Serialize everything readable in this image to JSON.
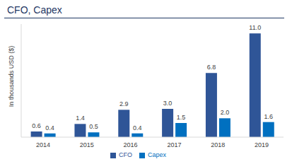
{
  "chart_data": {
    "type": "bar",
    "title": "CFO, Capex",
    "y_label": "In thousands USD ($)",
    "categories": [
      "2014",
      "2015",
      "2016",
      "2017",
      "2018",
      "2019"
    ],
    "series": [
      {
        "name": "CFO",
        "color": "#2f5597",
        "values": [
          0.6,
          1.4,
          2.9,
          3.0,
          6.8,
          11.0
        ],
        "value_labels": [
          "0.6",
          "1.4",
          "2.9",
          "3.0",
          "6.8",
          "11.0"
        ]
      },
      {
        "name": "Capex",
        "color": "#0070c0",
        "values": [
          0.4,
          0.5,
          0.4,
          1.5,
          2.0,
          1.6
        ],
        "value_labels": [
          "0.4",
          "0.5",
          "0.4",
          "1.5",
          "2.0",
          "1.6"
        ]
      }
    ],
    "ylim": [
      0,
      12
    ],
    "grid": false,
    "legend": "bottom",
    "data_labels": true,
    "tick_labels": "x"
  }
}
